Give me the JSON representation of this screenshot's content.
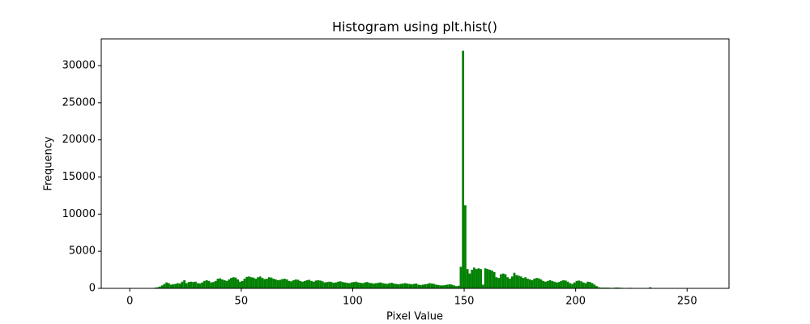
{
  "chart_data": {
    "type": "histogram",
    "title": "Histogram using plt.hist()",
    "xlabel": "Pixel Value",
    "ylabel": "Frequency",
    "color": "#008000",
    "bins": [
      0,
      1,
      2,
      3,
      4,
      5,
      6,
      7,
      8,
      9,
      10,
      11,
      12,
      13,
      14,
      15,
      16,
      17,
      18,
      19,
      20,
      21,
      22,
      23,
      24,
      25,
      26,
      27,
      28,
      29,
      30,
      31,
      32,
      33,
      34,
      35,
      36,
      37,
      38,
      39,
      40,
      41,
      42,
      43,
      44,
      45,
      46,
      47,
      48,
      49,
      50,
      51,
      52,
      53,
      54,
      55,
      56,
      57,
      58,
      59,
      60,
      61,
      62,
      63,
      64,
      65,
      66,
      67,
      68,
      69,
      70,
      71,
      72,
      73,
      74,
      75,
      76,
      77,
      78,
      79,
      80,
      81,
      82,
      83,
      84,
      85,
      86,
      87,
      88,
      89,
      90,
      91,
      92,
      93,
      94,
      95,
      96,
      97,
      98,
      99,
      100,
      101,
      102,
      103,
      104,
      105,
      106,
      107,
      108,
      109,
      110,
      111,
      112,
      113,
      114,
      115,
      116,
      117,
      118,
      119,
      120,
      121,
      122,
      123,
      124,
      125,
      126,
      127,
      128,
      129,
      130,
      131,
      132,
      133,
      134,
      135,
      136,
      137,
      138,
      139,
      140,
      141,
      142,
      143,
      144,
      145,
      146,
      147,
      148,
      149,
      150,
      151,
      152,
      153,
      154,
      155,
      156,
      157,
      158,
      159,
      160,
      161,
      162,
      163,
      164,
      165,
      166,
      167,
      168,
      169,
      170,
      171,
      172,
      173,
      174,
      175,
      176,
      177,
      178,
      179,
      180,
      181,
      182,
      183,
      184,
      185,
      186,
      187,
      188,
      189,
      190,
      191,
      192,
      193,
      194,
      195,
      196,
      197,
      198,
      199,
      200,
      201,
      202,
      203,
      204,
      205,
      206,
      207,
      208,
      209,
      210,
      211,
      212,
      213,
      214,
      215,
      216,
      217,
      218,
      219,
      220,
      221,
      222,
      223,
      224,
      225,
      226,
      227,
      228,
      229,
      230,
      231,
      232,
      233,
      234,
      235,
      236,
      237,
      238,
      239,
      240,
      241,
      242,
      243,
      244,
      245,
      246,
      247,
      248,
      249,
      250,
      251,
      252,
      253,
      254,
      255,
      256
    ],
    "values": [
      0,
      0,
      0,
      0,
      0,
      0,
      0,
      0,
      0,
      0,
      50,
      100,
      150,
      250,
      400,
      600,
      800,
      700,
      500,
      550,
      600,
      700,
      650,
      900,
      1100,
      700,
      850,
      900,
      850,
      900,
      700,
      650,
      800,
      1000,
      1100,
      1000,
      800,
      850,
      1000,
      1300,
      1350,
      1200,
      1100,
      1000,
      1200,
      1400,
      1500,
      1450,
      1200,
      900,
      1000,
      1300,
      1550,
      1600,
      1500,
      1450,
      1300,
      1500,
      1600,
      1400,
      1250,
      1300,
      1500,
      1450,
      1300,
      1200,
      1100,
      1150,
      1250,
      1300,
      1200,
      1000,
      950,
      1100,
      1200,
      1150,
      1000,
      900,
      1000,
      1100,
      1150,
      1000,
      900,
      1050,
      1100,
      1050,
      950,
      800,
      850,
      900,
      850,
      750,
      800,
      900,
      950,
      850,
      800,
      750,
      700,
      800,
      850,
      900,
      800,
      750,
      700,
      800,
      850,
      750,
      700,
      650,
      700,
      750,
      800,
      700,
      650,
      600,
      700,
      750,
      650,
      600,
      550,
      600,
      650,
      700,
      650,
      600,
      550,
      600,
      650,
      500,
      450,
      500,
      550,
      600,
      700,
      650,
      600,
      500,
      450,
      400,
      400,
      450,
      500,
      550,
      500,
      400,
      300,
      350,
      2900,
      32000,
      11200,
      2600,
      2000,
      2500,
      2800,
      2600,
      2700,
      2600,
      500,
      2700,
      2600,
      2500,
      2400,
      2200,
      1500,
      1400,
      1900,
      2000,
      1900,
      1500,
      1300,
      1600,
      2100,
      1800,
      1700,
      1600,
      1400,
      1500,
      1300,
      1200,
      1100,
      1300,
      1400,
      1350,
      1200,
      1000,
      900,
      1000,
      1100,
      1000,
      900,
      800,
      850,
      1000,
      1100,
      1050,
      900,
      700,
      600,
      800,
      1000,
      1050,
      950,
      800,
      700,
      900,
      850,
      700,
      500,
      300,
      150,
      100,
      100,
      100,
      100,
      80,
      60,
      100,
      120,
      100,
      80,
      60,
      50,
      60,
      80,
      40,
      30,
      20,
      30,
      20,
      20,
      10,
      10,
      150,
      10,
      5,
      5,
      0,
      0,
      0,
      0,
      0,
      0,
      0,
      0,
      0,
      0,
      0,
      0,
      0,
      0,
      0,
      0,
      0,
      0,
      0
    ],
    "xlim": [
      -12.8,
      268.8
    ],
    "xticks": [
      0,
      50,
      100,
      150,
      200,
      250
    ],
    "ylim": [
      0,
      33600
    ],
    "yticks": [
      0,
      5000,
      10000,
      15000,
      20000,
      25000,
      30000
    ]
  }
}
